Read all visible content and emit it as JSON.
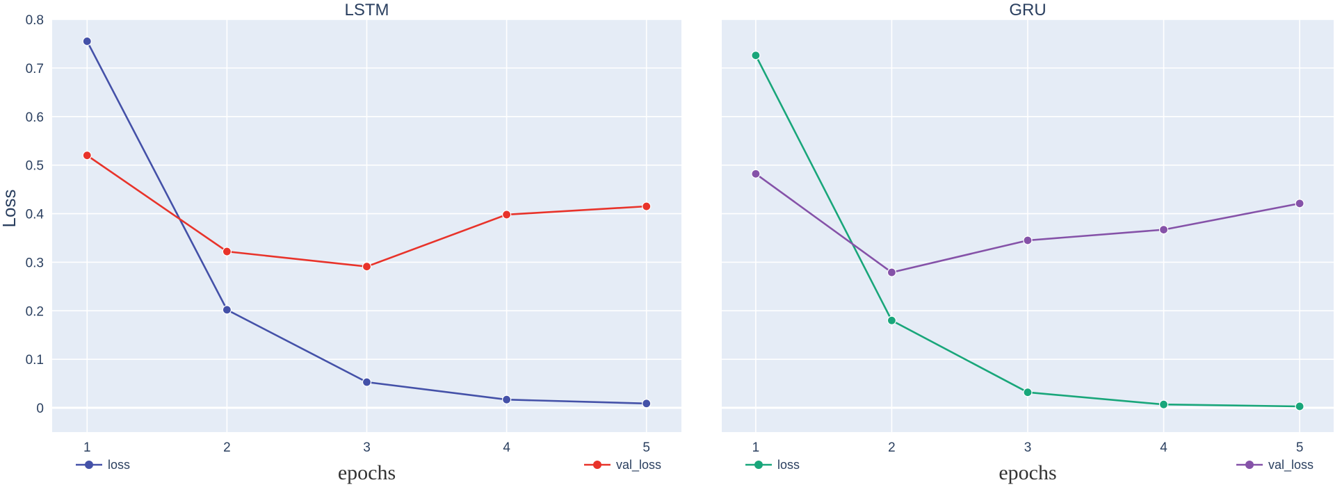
{
  "chart_data": [
    {
      "type": "line",
      "title": "LSTM",
      "xlabel": "epochs",
      "ylabel": "Loss",
      "x": [
        1,
        2,
        3,
        4,
        5
      ],
      "xlim": [
        0.75,
        5.25
      ],
      "ylim": [
        -0.05,
        0.8
      ],
      "yticks": [
        0,
        0.1,
        0.2,
        0.3,
        0.4,
        0.5,
        0.6,
        0.7,
        0.8
      ],
      "grid": true,
      "legend": "bottom",
      "series": [
        {
          "name": "loss",
          "color": "#4451a8",
          "values": [
            0.755,
            0.202,
            0.053,
            0.017,
            0.009
          ]
        },
        {
          "name": "val_loss",
          "color": "#e8332a",
          "values": [
            0.52,
            0.322,
            0.291,
            0.398,
            0.415
          ]
        }
      ]
    },
    {
      "type": "line",
      "title": "GRU",
      "xlabel": "epochs",
      "ylabel": "",
      "x": [
        1,
        2,
        3,
        4,
        5
      ],
      "xlim": [
        0.75,
        5.25
      ],
      "ylim": [
        -0.05,
        0.8
      ],
      "yticks": [
        0,
        0.1,
        0.2,
        0.3,
        0.4,
        0.5,
        0.6,
        0.7,
        0.8
      ],
      "grid": true,
      "legend": "bottom",
      "series": [
        {
          "name": "loss",
          "color": "#19a67a",
          "values": [
            0.726,
            0.18,
            0.032,
            0.007,
            0.003
          ]
        },
        {
          "name": "val_loss",
          "color": "#8552a8",
          "values": [
            0.482,
            0.279,
            0.345,
            0.367,
            0.421
          ]
        }
      ]
    }
  ],
  "colors": {
    "plot_background": "#e5ecf6",
    "grid": "#ffffff",
    "text": "#2a3f5f"
  }
}
